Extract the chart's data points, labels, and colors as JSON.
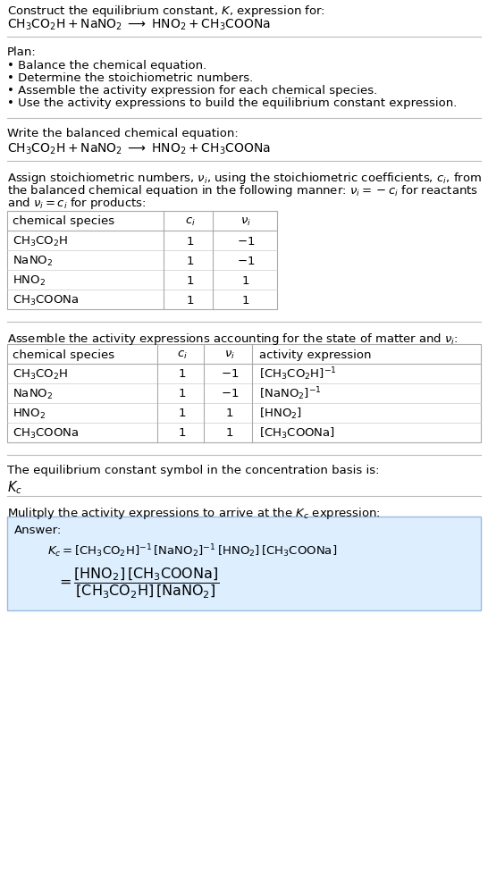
{
  "title_line1": "Construct the equilibrium constant, $K$, expression for:",
  "title_line2": "$\\mathrm{CH_3CO_2H + NaNO_2 \\;\\longrightarrow\\; HNO_2 + CH_3COONa}$",
  "plan_header": "Plan:",
  "plan_items": [
    "• Balance the chemical equation.",
    "• Determine the stoichiometric numbers.",
    "• Assemble the activity expression for each chemical species.",
    "• Use the activity expressions to build the equilibrium constant expression."
  ],
  "balanced_header": "Write the balanced chemical equation:",
  "balanced_eq": "$\\mathrm{CH_3CO_2H + NaNO_2 \\;\\longrightarrow\\; HNO_2 + CH_3COONa}$",
  "stoich_header_lines": [
    "Assign stoichiometric numbers, $\\nu_i$, using the stoichiometric coefficients, $c_i$, from",
    "the balanced chemical equation in the following manner: $\\nu_i = -c_i$ for reactants",
    "and $\\nu_i = c_i$ for products:"
  ],
  "table1_headers": [
    "chemical species",
    "$c_i$",
    "$\\nu_i$"
  ],
  "table1_rows": [
    [
      "$\\mathrm{CH_3CO_2H}$",
      "1",
      "$-1$"
    ],
    [
      "$\\mathrm{NaNO_2}$",
      "1",
      "$-1$"
    ],
    [
      "$\\mathrm{HNO_2}$",
      "1",
      "1"
    ],
    [
      "$\\mathrm{CH_3COONa}$",
      "1",
      "1"
    ]
  ],
  "activity_header": "Assemble the activity expressions accounting for the state of matter and $\\nu_i$:",
  "table2_headers": [
    "chemical species",
    "$c_i$",
    "$\\nu_i$",
    "activity expression"
  ],
  "table2_rows": [
    [
      "$\\mathrm{CH_3CO_2H}$",
      "1",
      "$-1$",
      "$[\\mathrm{CH_3CO_2H}]^{-1}$"
    ],
    [
      "$\\mathrm{NaNO_2}$",
      "1",
      "$-1$",
      "$[\\mathrm{NaNO_2}]^{-1}$"
    ],
    [
      "$\\mathrm{HNO_2}$",
      "1",
      "1",
      "$[\\mathrm{HNO_2}]$"
    ],
    [
      "$\\mathrm{CH_3COONa}$",
      "1",
      "1",
      "$[\\mathrm{CH_3COONa}]$"
    ]
  ],
  "kc_header": "The equilibrium constant symbol in the concentration basis is:",
  "kc_symbol": "$K_c$",
  "multiply_header": "Mulitply the activity expressions to arrive at the $K_c$ expression:",
  "answer_label": "Answer:",
  "answer_line1": "$K_c = [\\mathrm{CH_3CO_2H}]^{-1}\\,[\\mathrm{NaNO_2}]^{-1}\\,[\\mathrm{HNO_2}]\\,[\\mathrm{CH_3COONa}]$",
  "answer_eq_lhs": "$= \\dfrac{[\\mathrm{HNO_2}]\\,[\\mathrm{CH_3COONa}]}{[\\mathrm{CH_3CO_2H}]\\,[\\mathrm{NaNO_2}]}$",
  "bg_color": "#ffffff",
  "answer_box_color": "#ddeeff",
  "text_color": "#000000",
  "font_size": 9.5,
  "table_font_size": 9.5
}
